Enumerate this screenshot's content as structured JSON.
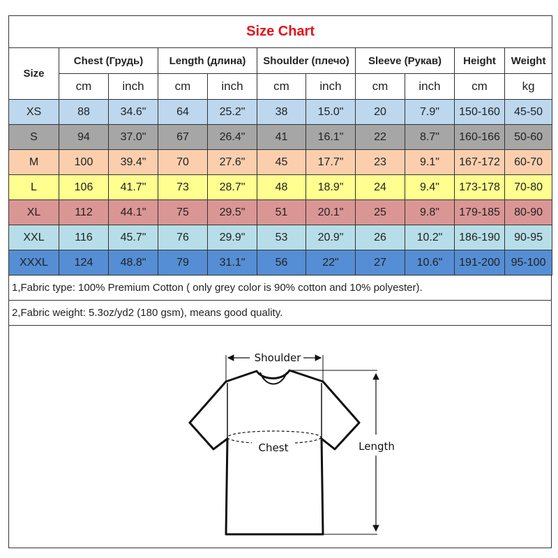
{
  "title": "Size Chart",
  "headers": {
    "size": "Size",
    "groups": [
      "Chest  (Грудь)",
      "Length (длина)",
      "Shoulder (плечо)",
      "Sleeve (Рукав)",
      "Height",
      "Weight"
    ],
    "units": [
      "cm",
      "inch",
      "cm",
      "inch",
      "cm",
      "inch",
      "cm",
      "inch",
      "cm",
      "kg"
    ]
  },
  "rows": [
    {
      "size": "XS",
      "color": "#bdd7ee",
      "values": [
        "88",
        "34.6\"",
        "64",
        "25.2\"",
        "38",
        "15.0\"",
        "20",
        "7.9\"",
        "150-160",
        "45-50"
      ]
    },
    {
      "size": "S",
      "color": "#a6a6a6",
      "values": [
        "94",
        "37.0\"",
        "67",
        "26.4\"",
        "41",
        "16.1\"",
        "22",
        "8.7\"",
        "160-166",
        "50-60"
      ]
    },
    {
      "size": "M",
      "color": "#fbcfae",
      "values": [
        "100",
        "39.4\"",
        "70",
        "27.6\"",
        "45",
        "17.7\"",
        "23",
        "9.1\"",
        "167-172",
        "60-70"
      ]
    },
    {
      "size": "L",
      "color": "#ffff8f",
      "values": [
        "106",
        "41.7\"",
        "73",
        "28.7\"",
        "48",
        "18.9\"",
        "24",
        "9.4\"",
        "173-178",
        "70-80"
      ]
    },
    {
      "size": "XL",
      "color": "#da9694",
      "values": [
        "112",
        "44.1\"",
        "75",
        "29.5\"",
        "51",
        "20.1\"",
        "25",
        "9.8\"",
        "179-185",
        "80-90"
      ]
    },
    {
      "size": "XXL",
      "color": "#b7dee8",
      "values": [
        "116",
        "45.7\"",
        "76",
        "29.9\"",
        "53",
        "20.9\"",
        "26",
        "10.2\"",
        "186-190",
        "90-95"
      ]
    },
    {
      "size": "XXXL",
      "color": "#558ed5",
      "values": [
        "124",
        "48.8\"",
        "79",
        "31.1\"",
        "56",
        "22\"",
        "27",
        "10.6\"",
        "191-200",
        "95-100"
      ]
    }
  ],
  "notes": [
    "1,Fabric type: 100% Premium Cotton ( only grey color is 90% cotton and 10% polyester).",
    "2,Fabric weight: 5.3oz/yd2 (180 gsm), means good quality."
  ],
  "diagram": {
    "shoulder": "Shoulder",
    "chest": "Chest",
    "length": "Length"
  }
}
